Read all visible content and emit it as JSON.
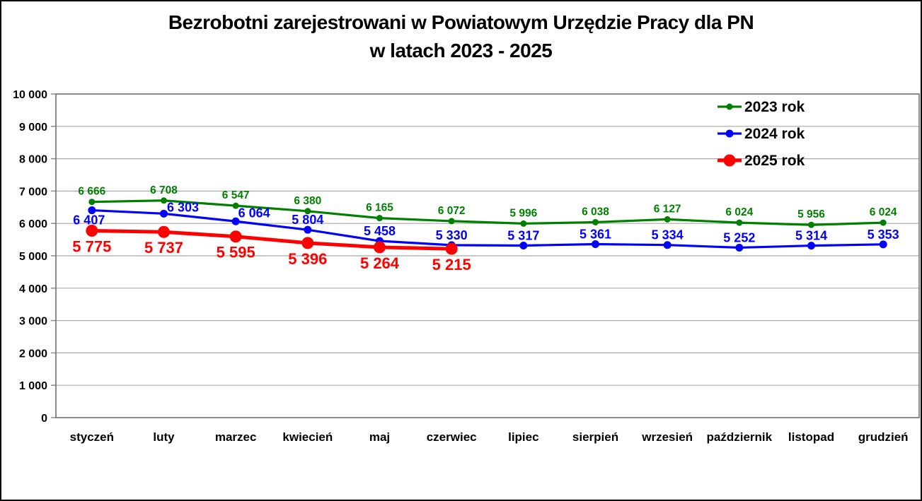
{
  "chart_data": {
    "type": "line",
    "title": "Bezrobotni zarejestrowani w Powiatowym Urzędzie Pracy dla PN w latach 2023 - 2025",
    "title_lines": [
      "Bezrobotni zarejestrowani w Powiatowym Urzędzie Pracy dla PN",
      "w latach 2023 - 2025"
    ],
    "categories": [
      "styczeń",
      "luty",
      "marzec",
      "kwiecień",
      "maj",
      "czerwiec",
      "lipiec",
      "sierpień",
      "wrzesień",
      "październik",
      "listopad",
      "grudzień"
    ],
    "series": [
      {
        "name": "2023 rok",
        "color": "#008000",
        "values": [
          6666,
          6708,
          6547,
          6380,
          6165,
          6072,
          5996,
          6038,
          6127,
          6024,
          5956,
          6024
        ]
      },
      {
        "name": "2024 rok",
        "color": "#0000FF",
        "values": [
          6407,
          6303,
          6064,
          5804,
          5458,
          5330,
          5317,
          5361,
          5334,
          5252,
          5314,
          5353
        ]
      },
      {
        "name": "2025 rok",
        "color": "#FF0000",
        "values": [
          5775,
          5737,
          5595,
          5396,
          5264,
          5215
        ]
      }
    ],
    "ylim": [
      0,
      10000
    ],
    "ytick_step": 1000,
    "ytick_labels": [
      "0",
      "1 000",
      "2 000",
      "3 000",
      "4 000",
      "5 000",
      "6 000",
      "7 000",
      "8 000",
      "9 000",
      "10 000"
    ],
    "xlabel": "",
    "ylabel": "",
    "grid": true,
    "data_labels": true,
    "legend_position": "inside-top-right",
    "legend": [
      "2023 rok",
      "2024 rok",
      "2025 rok"
    ]
  },
  "colors": {
    "background": "#FFFFFF",
    "page_border": "#000000",
    "plot_border": "#6E6E6E",
    "gridline": "#A9A9A9",
    "tick": "#8A8A8A",
    "text": "#000000",
    "series_2023": "#008000",
    "series_2024": "#0000FF",
    "series_2025": "#FF0000"
  }
}
